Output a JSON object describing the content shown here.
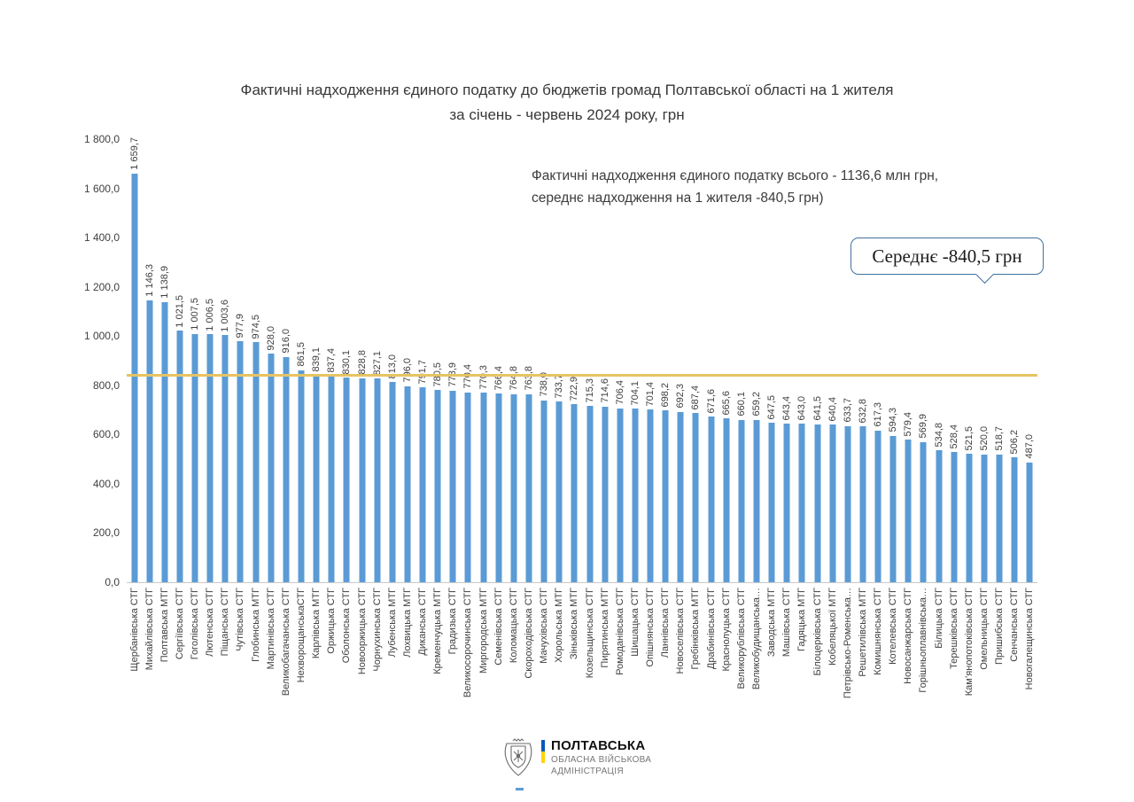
{
  "title": {
    "line1": "Фактичні надходження єдиного податку до бюджетів громад Полтавської області на 1 жителя",
    "line2": "за  січень - червень  2024 року,  грн"
  },
  "annotation": {
    "line1": "Фактичні надходження єдиного податку всього - 1136,6 млн грн,",
    "line2": "середнє надходження на 1 жителя -840,5 грн)"
  },
  "callout": {
    "text": "Середнє -840,5 грн"
  },
  "chart_data": {
    "type": "bar",
    "title": "Фактичні надходження єдиного податку до бюджетів громад Полтавської області на 1 жителя за січень - червень 2024 року, грн",
    "xlabel": "",
    "ylabel": "",
    "ylim": [
      0,
      1800
    ],
    "ytick_step": 200,
    "y_tick_labels": [
      "0,0",
      "200,0",
      "400,0",
      "600,0",
      "800,0",
      "1 000,0",
      "1 200,0",
      "1 400,0",
      "1 600,0",
      "1 800,0"
    ],
    "grid": false,
    "bar_color": "#5B9BD5",
    "average_line": {
      "value": 840.5,
      "color": "#E6C364",
      "label": "Середнє -840,5 грн"
    },
    "categories": [
      "Щербанівська СТГ",
      "Михайлівська СТГ",
      "Полтавська МТГ",
      "Сергіївська СТГ",
      "Гоголівська СТГ",
      "Лютенська СТГ",
      "Піщанська СТГ",
      "Чутівська СТГ",
      "Глобинська МТГ",
      "Мартинівська СТГ",
      "Великобагачанська СТГ",
      "НехворощанськаСТГ",
      "Карлівська МТГ",
      "Оржицька СТГ",
      "Оболонська СТГ",
      "Новооржицька СТГ",
      "Чорнухинська СТГ",
      "Лубенська МТГ",
      "Лохвицька МТГ",
      "Диканська СТГ",
      "Кременчуцька МТГ",
      "Градизька СТГ",
      "Великосорочинська СТГ",
      "Миргородська МТГ",
      "Семенівська СТГ",
      "Коломацька СТГ",
      "Скороходівська СТГ",
      "Мачухівська СТГ",
      "Хорольська МТГ",
      "Зіньківська МТГ",
      "Козельщинська СТГ",
      "Пирятинська МТГ",
      "Ромоданівська СТГ",
      "Шишацька СТГ",
      "Опішнянська СТГ",
      "Ланнівська СТГ",
      "Новоселівська СТГ",
      "Гребінківська МТГ",
      "Драбинівська СТГ",
      "Краснолуцька СТГ",
      "Великорублівська СТГ",
      "Великобудищанська…",
      "Заводська МТГ",
      "Машівська СТГ",
      "Гадяцька МТГ",
      "Білоцерківська СТГ",
      "Кобеляцької МТГ",
      "Петрівсько-Роменська…",
      "Решетилівська МТГ",
      "Комишнянська СТГ",
      "Котелевська СТГ",
      "Новосанжарська СТГ",
      "Горішньоплавнівська…",
      "Білицька СТГ",
      "Терешківська СТГ",
      "Кам’янопотоківська СТГ",
      "Омельницька СТГ",
      "Пришибська СТГ",
      "Сенчанська СТГ",
      "Новогалещинська СТГ"
    ],
    "values": [
      1659.7,
      1146.3,
      1138.9,
      1021.5,
      1007.5,
      1006.5,
      1003.6,
      977.9,
      974.5,
      928.0,
      916.0,
      861.5,
      839.1,
      837.4,
      830.1,
      828.8,
      827.1,
      813.0,
      796.0,
      791.7,
      780.5,
      778.9,
      770.4,
      770.3,
      766.4,
      764.8,
      763.8,
      738.0,
      733.7,
      722.9,
      715.3,
      714.6,
      706.4,
      704.1,
      701.4,
      698.2,
      692.3,
      687.4,
      671.6,
      665.6,
      660.1,
      659.2,
      647.5,
      643.4,
      643.0,
      641.5,
      640.4,
      633.7,
      632.8,
      617.3,
      594.3,
      579.4,
      569.9,
      534.8,
      528.4,
      521.5,
      520.0,
      518.7,
      506.2,
      487.0
    ]
  },
  "footer_logo": {
    "name1": "ПОЛТАВСЬКА",
    "name2": "ОБЛАСНА ВІЙСЬКОВА",
    "name3": "АДМІНІСТРАЦІЯ",
    "flag_blue": "#005BBB",
    "flag_yellow": "#FFD500"
  }
}
